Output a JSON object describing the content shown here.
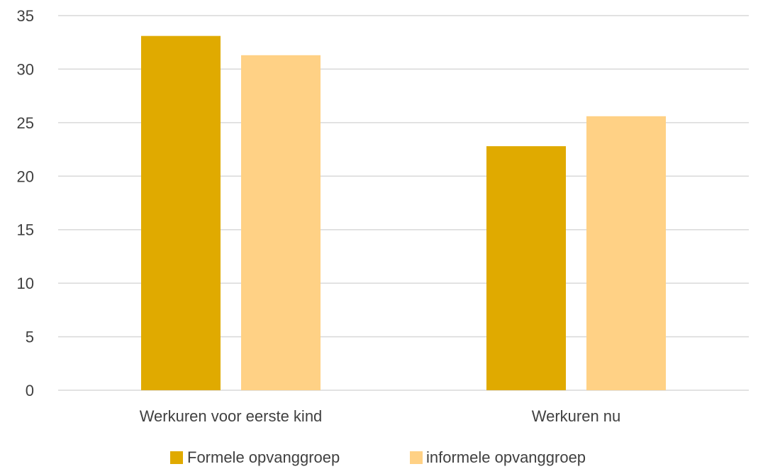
{
  "chart_data": {
    "type": "bar",
    "categories": [
      "Werkuren voor eerste kind",
      "Werkuren nu"
    ],
    "series": [
      {
        "name": "Formele opvanggroep",
        "color": "#e0aa00",
        "values": [
          33.1,
          22.8
        ]
      },
      {
        "name": "informele opvanggroep",
        "color": "#ffd185",
        "values": [
          31.3,
          25.6
        ]
      }
    ],
    "title": "",
    "xlabel": "",
    "ylabel": "",
    "ylim": [
      0,
      35
    ],
    "yticks": [
      0,
      5,
      10,
      15,
      20,
      25,
      30,
      35
    ],
    "grid": true,
    "legend_position": "bottom"
  }
}
